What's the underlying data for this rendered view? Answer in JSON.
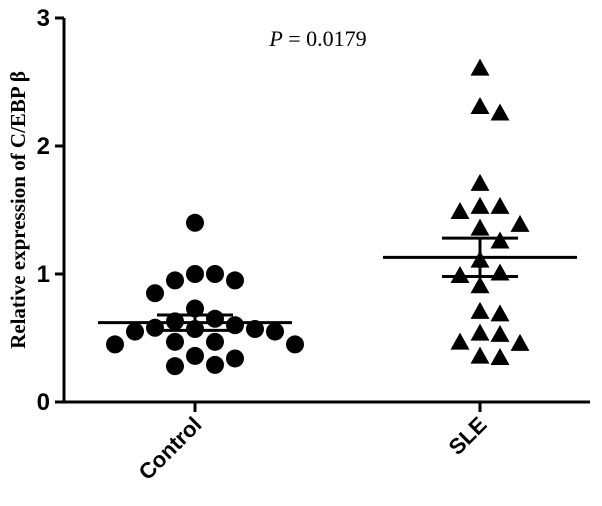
{
  "chart_data": {
    "type": "scatter",
    "ylabel": "Relative expression of C/EBP β",
    "xlabel": "",
    "ylim": [
      0,
      3
    ],
    "yticks": [
      0,
      1,
      2,
      3
    ],
    "categories": [
      "Control",
      "SLE"
    ],
    "annotation": {
      "italic": "P",
      "rest": " = 0.0179"
    },
    "series": [
      {
        "category": "Control",
        "marker": "circle",
        "values": [
          1.4,
          1.0,
          1.0,
          0.95,
          0.95,
          0.85,
          0.73,
          0.65,
          0.63,
          0.6,
          0.58,
          0.57,
          0.57,
          0.55,
          0.55,
          0.47,
          0.47,
          0.45,
          0.45,
          0.36,
          0.34,
          0.29,
          0.28
        ],
        "mean": 0.62,
        "sem_upper": 0.68,
        "sem_lower": 0.56
      },
      {
        "category": "SLE",
        "marker": "triangle",
        "values": [
          2.6,
          2.3,
          2.25,
          1.7,
          1.52,
          1.52,
          1.48,
          1.38,
          1.35,
          1.25,
          1.1,
          1.0,
          0.98,
          0.9,
          0.7,
          0.68,
          0.53,
          0.52,
          0.46,
          0.45,
          0.35,
          0.34
        ],
        "mean": 1.13,
        "sem_upper": 1.28,
        "sem_lower": 0.98
      }
    ]
  }
}
